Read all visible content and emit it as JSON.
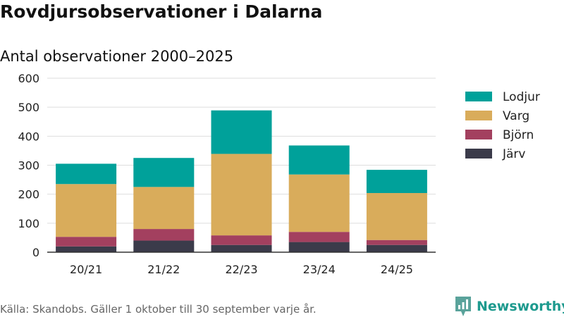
{
  "title": "Rovdjursobservationer i Dalarna",
  "subtitle": "Antal observationer 2000–2025",
  "source": "Källa: Skandobs. Gäller 1 oktober till 30 september varje år.",
  "brand": {
    "name": "Newsworthy",
    "icon": "bar-chart-icon"
  },
  "colors": {
    "Lodjur": "#00a19a",
    "Varg": "#d9ac5b",
    "Björn": "#a3405f",
    "Järv": "#3b3b4a",
    "grid": "#dddddd",
    "axis": "#333333",
    "brand": "#1d9a8e"
  },
  "chart_data": {
    "type": "bar",
    "stacked": true,
    "title": "Rovdjursobservationer i Dalarna",
    "subtitle": "Antal observationer 2000–2025",
    "xlabel": "",
    "ylabel": "",
    "ylim": [
      0,
      600
    ],
    "yticks": [
      0,
      100,
      200,
      300,
      400,
      500,
      600
    ],
    "categories": [
      "20/21",
      "21/22",
      "22/23",
      "23/24",
      "24/25"
    ],
    "series": [
      {
        "name": "Järv",
        "values": [
          20,
          40,
          25,
          35,
          25
        ]
      },
      {
        "name": "Björn",
        "values": [
          33,
          40,
          33,
          35,
          17
        ]
      },
      {
        "name": "Varg",
        "values": [
          182,
          145,
          281,
          198,
          162
        ]
      },
      {
        "name": "Lodjur",
        "values": [
          70,
          100,
          150,
          100,
          80
        ]
      }
    ],
    "legend": [
      "Lodjur",
      "Varg",
      "Björn",
      "Järv"
    ],
    "legend_position": "right",
    "grid": true
  }
}
